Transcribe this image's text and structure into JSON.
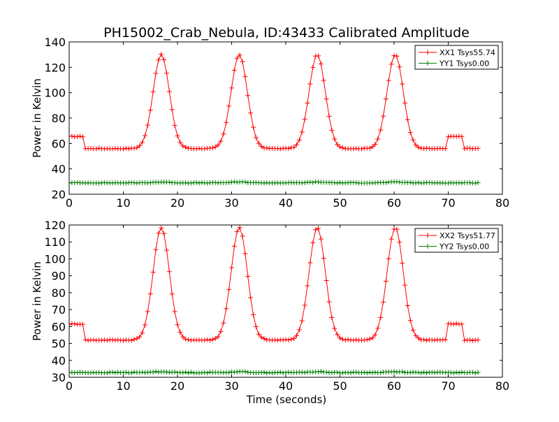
{
  "figure": {
    "title": "PH15002_Crab_Nebula, ID:43433 Calibrated Amplitude",
    "xlabel": "Time (seconds)"
  },
  "chart_data": [
    {
      "type": "line",
      "ylabel": "Power in Kelvin",
      "xlim": [
        0,
        80
      ],
      "ylim": [
        20,
        140
      ],
      "xticks": [
        0,
        10,
        20,
        30,
        40,
        50,
        60,
        70,
        80
      ],
      "yticks": [
        20,
        40,
        60,
        80,
        100,
        120,
        140
      ],
      "legend_position": "top-right",
      "model": {
        "x_start": 0.0,
        "x_end": 75.5,
        "x_step": 0.5,
        "peaks": [
          17,
          31.4,
          45.8,
          60.2
        ],
        "peak_sigma": 1.5,
        "high_segments": [
          [
            0,
            2.7
          ],
          [
            70,
            72.7
          ]
        ]
      },
      "series": [
        {
          "name": "XX1 Tsys55.74",
          "color": "#ff0000",
          "baseline": 56,
          "peak_height": 74,
          "high_level": 65.5,
          "noise": 0.3
        },
        {
          "name": "YY1 Tsys0.00",
          "color": "#008000",
          "baseline": 29,
          "peak_height": 0.6,
          "high_level": 29,
          "noise": 0.25
        }
      ]
    },
    {
      "type": "line",
      "ylabel": "Power in Kelvin",
      "xlim": [
        0,
        80
      ],
      "ylim": [
        30,
        120
      ],
      "xticks": [
        0,
        10,
        20,
        30,
        40,
        50,
        60,
        70,
        80
      ],
      "yticks": [
        30,
        40,
        50,
        60,
        70,
        80,
        90,
        100,
        110,
        120
      ],
      "legend_position": "top-right",
      "model": {
        "x_start": 0.0,
        "x_end": 75.5,
        "x_step": 0.5,
        "peaks": [
          17,
          31.4,
          45.8,
          60.2
        ],
        "peak_sigma": 1.5,
        "high_segments": [
          [
            0,
            2.7
          ],
          [
            70,
            72.7
          ]
        ]
      },
      "series": [
        {
          "name": "XX2 Tsys51.77",
          "color": "#ff0000",
          "baseline": 52,
          "peak_height": 66.5,
          "high_level": 61.5,
          "noise": 0.3
        },
        {
          "name": "YY2 Tsys0.00",
          "color": "#008000",
          "baseline": 32.8,
          "peak_height": 0.5,
          "high_level": 32.8,
          "noise": 0.25
        }
      ]
    }
  ]
}
